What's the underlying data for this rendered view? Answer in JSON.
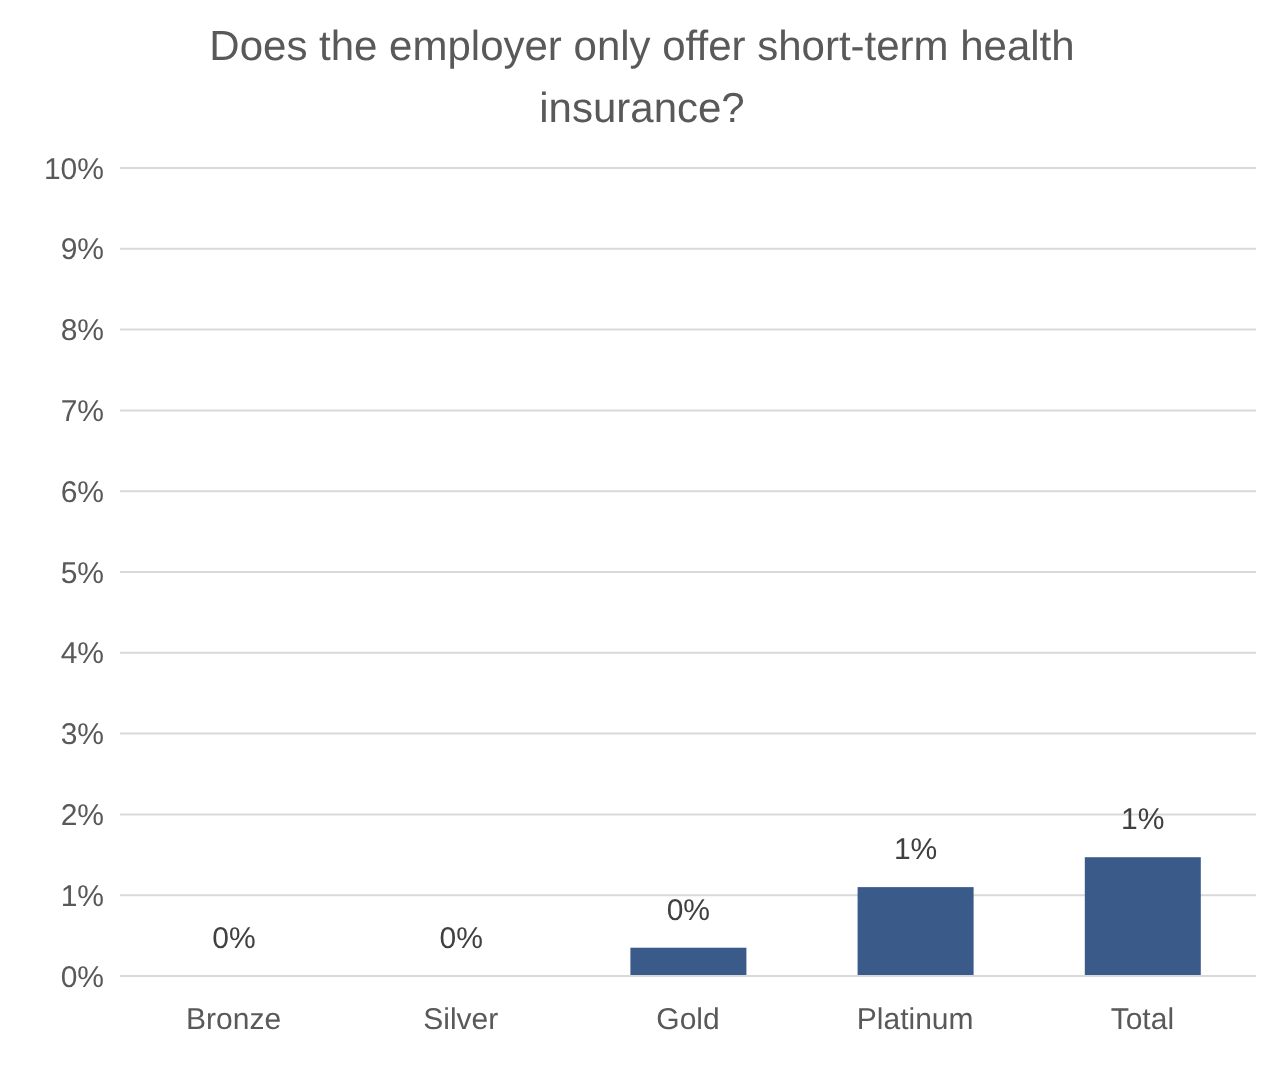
{
  "chart_data": {
    "type": "bar",
    "title": "Does the employer only offer short-term health insurance?",
    "categories": [
      "Bronze",
      "Silver",
      "Gold",
      "Platinum",
      "Total"
    ],
    "values": [
      0,
      0,
      0.35,
      1.1,
      1.47
    ],
    "value_labels": [
      "0%",
      "0%",
      "0%",
      "1%",
      "1%"
    ],
    "color": "#3a5a8a",
    "ylim": [
      0,
      10
    ],
    "yticks": [
      {
        "value": 0,
        "label": "0%"
      },
      {
        "value": 1,
        "label": "1%"
      },
      {
        "value": 2,
        "label": "2%"
      },
      {
        "value": 3,
        "label": "3%"
      },
      {
        "value": 4,
        "label": "4%"
      },
      {
        "value": 5,
        "label": "5%"
      },
      {
        "value": 6,
        "label": "6%"
      },
      {
        "value": 7,
        "label": "7%"
      },
      {
        "value": 8,
        "label": "8%"
      },
      {
        "value": 9,
        "label": "9%"
      },
      {
        "value": 10,
        "label": "10%"
      }
    ],
    "grid": "y",
    "legend": false
  }
}
